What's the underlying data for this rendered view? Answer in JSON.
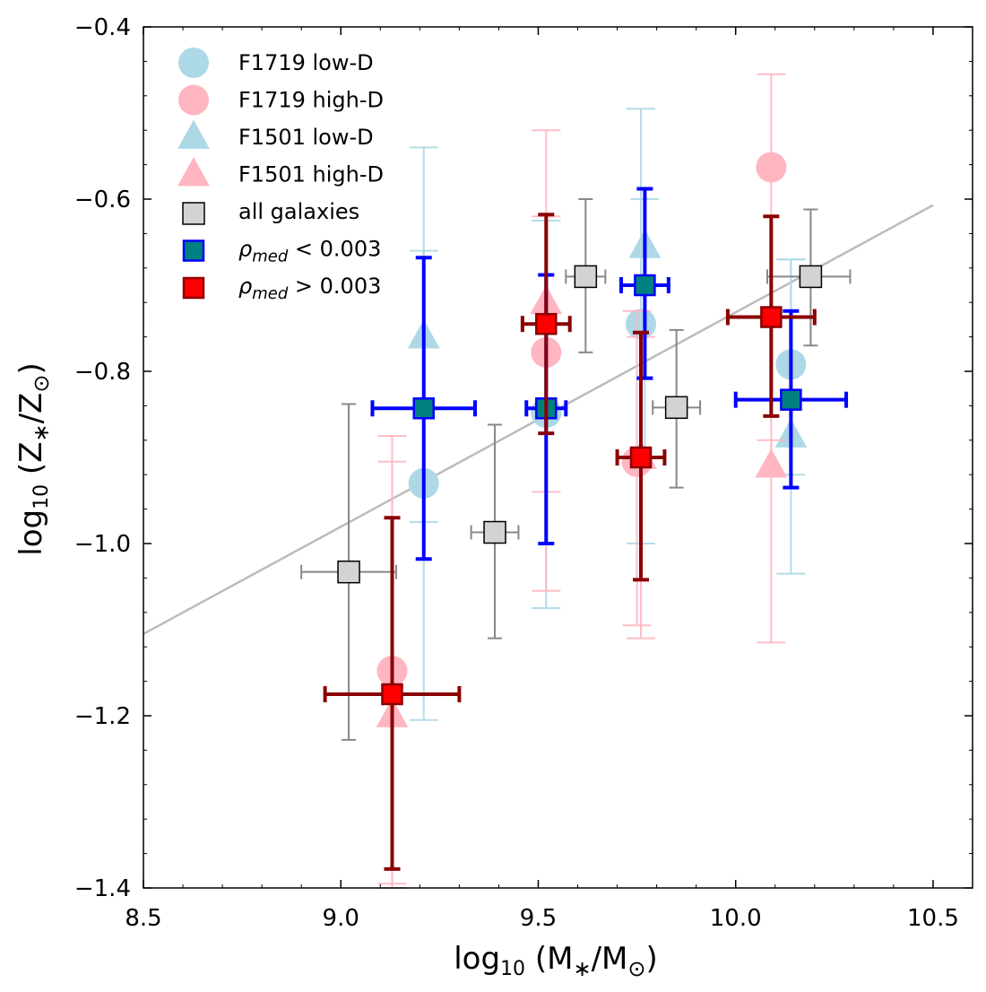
{
  "chart_data": {
    "type": "scatter",
    "title": "",
    "xlabel": {
      "pre": "log",
      "sub": "10",
      "text": " (M",
      "subsym": "∗",
      "mid": "/M",
      "subsym2": "⊙",
      "post": ")"
    },
    "ylabel": {
      "pre": "log",
      "sub": "10",
      "text": " (Z",
      "subsym": "∗",
      "mid": "/Z",
      "subsym2": "⊙",
      "post": ")"
    },
    "xlim": [
      8.5,
      10.6
    ],
    "ylim": [
      -1.4,
      -0.4
    ],
    "xticks": [
      8.5,
      9.0,
      9.5,
      10.0,
      10.5
    ],
    "xtick_labels": [
      "8.5",
      "9.0",
      "9.5",
      "10.0",
      "10.5"
    ],
    "yticks": [
      -1.4,
      -1.2,
      -1.0,
      -0.8,
      -0.6,
      -0.4
    ],
    "ytick_labels": [
      "−1.4",
      "−1.2",
      "−1.0",
      "−0.8",
      "−0.6",
      "−0.4"
    ],
    "grid": false,
    "legend_position": "top-left",
    "fit_line": {
      "x": [
        8.5,
        10.5
      ],
      "y": [
        -1.105,
        -0.607
      ],
      "color": "#bbbbbb"
    },
    "series": [
      {
        "name": "F1719 low-D",
        "marker": "circle",
        "color": "#add8e6",
        "points": [
          {
            "x": 9.21,
            "y": -0.93,
            "ylo": -1.205,
            "yhi": -0.66
          },
          {
            "x": 9.52,
            "y": -0.848,
            "ylo": -1.075,
            "yhi": -0.625
          },
          {
            "x": 9.76,
            "y": -0.745,
            "ylo": -1.0,
            "yhi": -0.495
          },
          {
            "x": 10.14,
            "y": -0.792,
            "ylo": -1.035,
            "yhi": -0.67
          }
        ]
      },
      {
        "name": "F1719 high-D",
        "marker": "circle",
        "color": "#ffb6c1",
        "points": [
          {
            "x": 9.13,
            "y": -1.148,
            "ylo": -1.4,
            "yhi": -0.905
          },
          {
            "x": 9.52,
            "y": -0.778,
            "ylo": -1.055,
            "yhi": -0.52
          },
          {
            "x": 9.75,
            "y": -0.905,
            "ylo": -1.095,
            "yhi": -0.73
          },
          {
            "x": 10.09,
            "y": -0.563,
            "ylo": -1.115,
            "yhi": -0.455
          }
        ]
      },
      {
        "name": "F1501 low-D",
        "marker": "triangle",
        "color": "#add8e6",
        "points": [
          {
            "x": 9.21,
            "y": -0.76,
            "ylo": -0.975,
            "yhi": -0.54
          },
          {
            "x": 9.77,
            "y": -0.655,
            "ylo": -0.9,
            "yhi": -0.6
          },
          {
            "x": 10.14,
            "y": -0.875,
            "ylo": -0.92,
            "yhi": -0.67
          }
        ]
      },
      {
        "name": "F1501 high-D",
        "marker": "triangle",
        "color": "#ffb6c1",
        "points": [
          {
            "x": 9.13,
            "y": -1.2,
            "ylo": -1.395,
            "yhi": -0.875
          },
          {
            "x": 9.52,
            "y": -0.72,
            "ylo": -0.94,
            "yhi": -0.62
          },
          {
            "x": 9.76,
            "y": -0.9,
            "ylo": -1.11,
            "yhi": -0.76
          },
          {
            "x": 10.09,
            "y": -0.91,
            "ylo": -0.92,
            "yhi": -0.88
          }
        ]
      },
      {
        "name": "all galaxies",
        "marker": "square",
        "color": "#d3d3d3",
        "edge": "#000000",
        "err": "#888888",
        "points": [
          {
            "x": 9.02,
            "y": -1.033,
            "xlo": 8.9,
            "xhi": 9.14,
            "ylo": -1.228,
            "yhi": -0.838
          },
          {
            "x": 9.39,
            "y": -0.987,
            "xlo": 9.33,
            "xhi": 9.45,
            "ylo": -1.11,
            "yhi": -0.862
          },
          {
            "x": 9.62,
            "y": -0.69,
            "xlo": 9.57,
            "xhi": 9.67,
            "ylo": -0.778,
            "yhi": -0.6
          },
          {
            "x": 9.85,
            "y": -0.842,
            "xlo": 9.79,
            "xhi": 9.91,
            "ylo": -0.935,
            "yhi": -0.752
          },
          {
            "x": 10.19,
            "y": -0.69,
            "xlo": 10.08,
            "xhi": 10.29,
            "ylo": -0.77,
            "yhi": -0.612
          }
        ]
      },
      {
        "name": "ρ_med < 0.003",
        "marker": "square",
        "color": "#008080",
        "edge": "#0000ff",
        "err": "#0000ff",
        "points": [
          {
            "x": 9.21,
            "y": -0.843,
            "xlo": 9.08,
            "xhi": 9.34,
            "ylo": -1.018,
            "yhi": -0.668
          },
          {
            "x": 9.52,
            "y": -0.843,
            "xlo": 9.47,
            "xhi": 9.57,
            "ylo": -1.0,
            "yhi": -0.688
          },
          {
            "x": 9.77,
            "y": -0.7,
            "xlo": 9.71,
            "xhi": 9.83,
            "ylo": -0.808,
            "yhi": -0.588
          },
          {
            "x": 10.14,
            "y": -0.833,
            "xlo": 10.0,
            "xhi": 10.28,
            "ylo": -0.935,
            "yhi": -0.73
          }
        ]
      },
      {
        "name": "ρ_med > 0.003",
        "marker": "square",
        "color": "#ff0000",
        "edge": "#8b0000",
        "err": "#8b0000",
        "points": [
          {
            "x": 9.13,
            "y": -1.175,
            "xlo": 8.96,
            "xhi": 9.3,
            "ylo": -1.378,
            "yhi": -0.97
          },
          {
            "x": 9.52,
            "y": -0.745,
            "xlo": 9.46,
            "xhi": 9.58,
            "ylo": -0.872,
            "yhi": -0.618
          },
          {
            "x": 9.76,
            "y": -0.9,
            "xlo": 9.7,
            "xhi": 9.82,
            "ylo": -1.042,
            "yhi": -0.755
          },
          {
            "x": 10.09,
            "y": -0.737,
            "xlo": 9.98,
            "xhi": 10.2,
            "ylo": -0.852,
            "yhi": -0.62
          }
        ]
      }
    ],
    "legend": [
      {
        "label": "F1719 low-D",
        "marker": "circle",
        "color": "#add8e6"
      },
      {
        "label": "F1719 high-D",
        "marker": "circle",
        "color": "#ffb6c1"
      },
      {
        "label": "F1501 low-D",
        "marker": "triangle",
        "color": "#add8e6"
      },
      {
        "label": "F1501 high-D",
        "marker": "triangle",
        "color": "#ffb6c1"
      },
      {
        "label": "all galaxies",
        "marker": "square",
        "color": "#d3d3d3",
        "edge": "#000000"
      },
      {
        "label_sym": "ρ",
        "label_sub": "med",
        "label_rest": " < 0.003",
        "marker": "square",
        "color": "#008080",
        "edge": "#0000ff"
      },
      {
        "label_sym": "ρ",
        "label_sub": "med",
        "label_rest": " > 0.003",
        "marker": "square",
        "color": "#ff0000",
        "edge": "#8b0000"
      }
    ]
  }
}
